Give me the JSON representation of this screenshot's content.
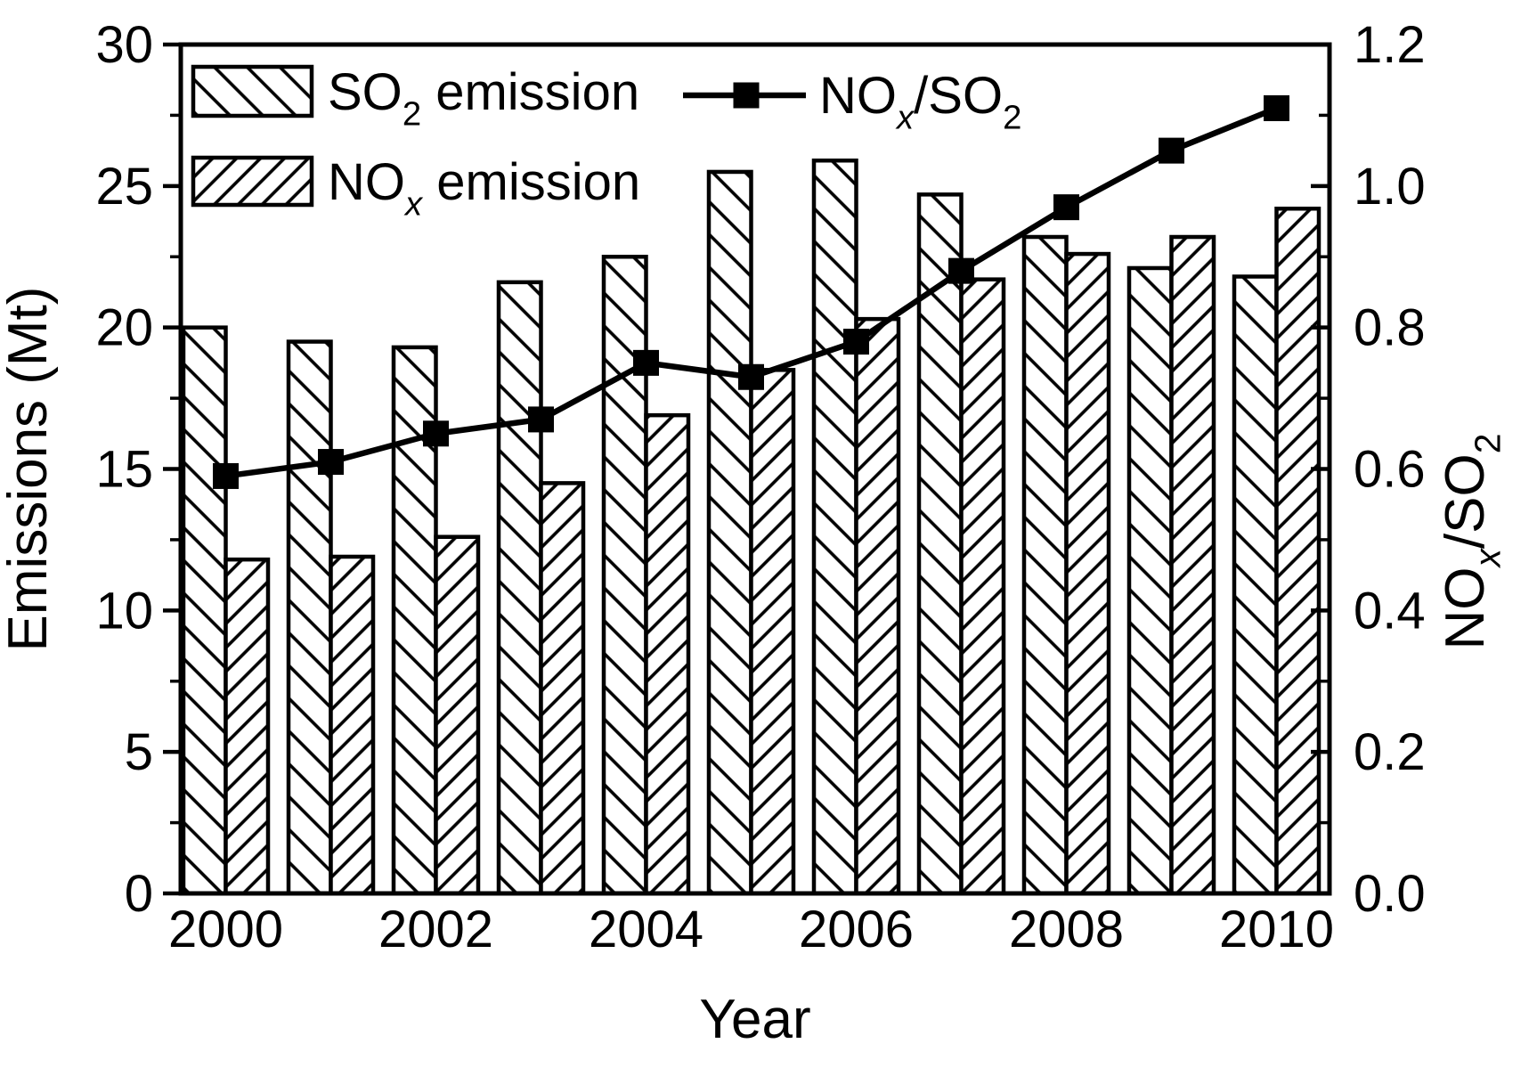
{
  "figure": {
    "background": "#ffffff",
    "ink": "#000000"
  },
  "chart_data": {
    "type": "bar+line",
    "title": "",
    "categories": [
      2000,
      2001,
      2002,
      2003,
      2004,
      2005,
      2006,
      2007,
      2008,
      2009,
      2010
    ],
    "series": [
      {
        "id": "so2",
        "plain_name": "SO2 emission",
        "name_segments": [
          {
            "t": "SO"
          },
          {
            "t": "2",
            "sub": true
          },
          {
            "t": " emission"
          }
        ],
        "type": "bar",
        "axis": "left",
        "hatch": "backslash",
        "values": [
          20.0,
          19.5,
          19.3,
          21.6,
          22.5,
          25.5,
          25.9,
          24.7,
          23.2,
          22.1,
          21.8
        ]
      },
      {
        "id": "nox",
        "plain_name": "NOx emission",
        "name_segments": [
          {
            "t": "NO"
          },
          {
            "t": "x",
            "sub": true,
            "italic": true
          },
          {
            "t": " emission"
          }
        ],
        "type": "bar",
        "axis": "left",
        "hatch": "slash",
        "values": [
          11.8,
          11.9,
          12.6,
          14.5,
          16.9,
          18.5,
          20.3,
          21.7,
          22.6,
          23.2,
          24.2
        ]
      },
      {
        "id": "ratio",
        "plain_name": "NOx/SO2",
        "name_segments": [
          {
            "t": "NO"
          },
          {
            "t": "x",
            "sub": true,
            "italic": true
          },
          {
            "t": "/SO"
          },
          {
            "t": "2",
            "sub": true
          }
        ],
        "type": "line",
        "axis": "right",
        "marker": "filled-square",
        "values": [
          0.59,
          0.61,
          0.65,
          0.67,
          0.75,
          0.73,
          0.78,
          0.88,
          0.97,
          1.05,
          1.11
        ]
      }
    ],
    "left_axis": {
      "label": "Emissions (Mt)",
      "min": 0,
      "max": 30,
      "major_values": [
        0,
        5,
        10,
        15,
        20,
        25,
        30
      ],
      "tick_labels": [
        "0",
        "5",
        "10",
        "15",
        "20",
        "25",
        "30"
      ],
      "minor_step": 2.5
    },
    "right_axis": {
      "label_plain": "NOx/SO2",
      "label_segments": [
        {
          "t": "NO"
        },
        {
          "t": "x",
          "sub": true,
          "italic": true
        },
        {
          "t": "/SO"
        },
        {
          "t": "2",
          "sub": true
        }
      ],
      "min": 0.0,
      "max": 1.2,
      "major_values": [
        0.0,
        0.2,
        0.4,
        0.6,
        0.8,
        1.0,
        1.2
      ],
      "tick_labels": [
        "0.0",
        "0.2",
        "0.4",
        "0.6",
        "0.8",
        "1.0",
        "1.2"
      ],
      "minor_step": 0.1
    },
    "x_axis": {
      "label": "Year",
      "labeled_years": [
        2000,
        2002,
        2004,
        2006,
        2008,
        2010
      ],
      "tick_labels": [
        "2000",
        "2002",
        "2004",
        "2006",
        "2008",
        "2010"
      ]
    },
    "legend": {
      "items": [
        {
          "series": "so2",
          "swatch": "so2-hatch"
        },
        {
          "series": "nox",
          "swatch": "nox-hatch"
        },
        {
          "series": "ratio",
          "swatch": "line-marker"
        }
      ]
    },
    "grid": false,
    "legend_position": "top-left-inside"
  }
}
